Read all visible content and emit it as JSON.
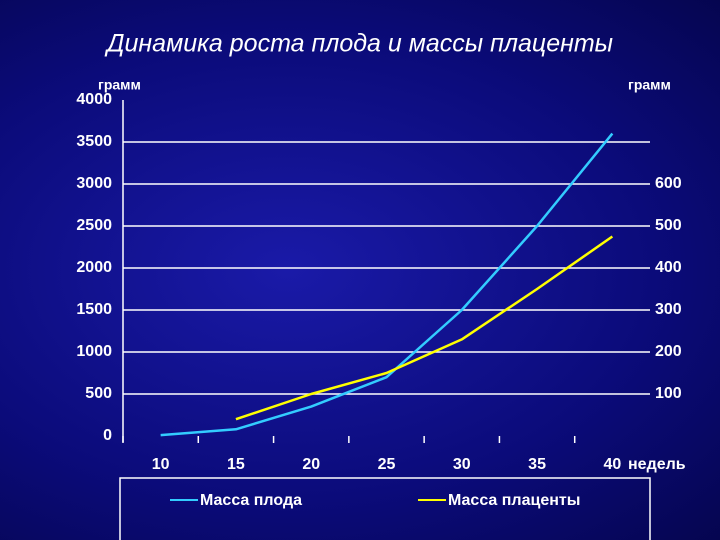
{
  "chart_data": {
    "type": "line",
    "title": "Динамика роста плода и массы плаценты",
    "y_label": "грамм",
    "y2_label": "грамм",
    "x_label": "недель",
    "categories": [
      "10",
      "15",
      "20",
      "25",
      "30",
      "35",
      "40"
    ],
    "series": [
      {
        "name": "Масса плода",
        "color": "#33ccff",
        "values": [
          10,
          80,
          350,
          700,
          1500,
          2500,
          3600
        ]
      },
      {
        "name": "Масса плаценты",
        "color": "#ffff00",
        "axis": "y2",
        "values": [
          null,
          40,
          100,
          150,
          230,
          350,
          475
        ]
      }
    ],
    "ylim": [
      0,
      4000
    ],
    "yticks": [
      0,
      500,
      1000,
      1500,
      2000,
      2500,
      3000,
      3500,
      4000
    ],
    "y2lim": [
      0,
      800
    ],
    "y2ticks": [
      100,
      200,
      300,
      400,
      500,
      600
    ],
    "grid": true
  }
}
